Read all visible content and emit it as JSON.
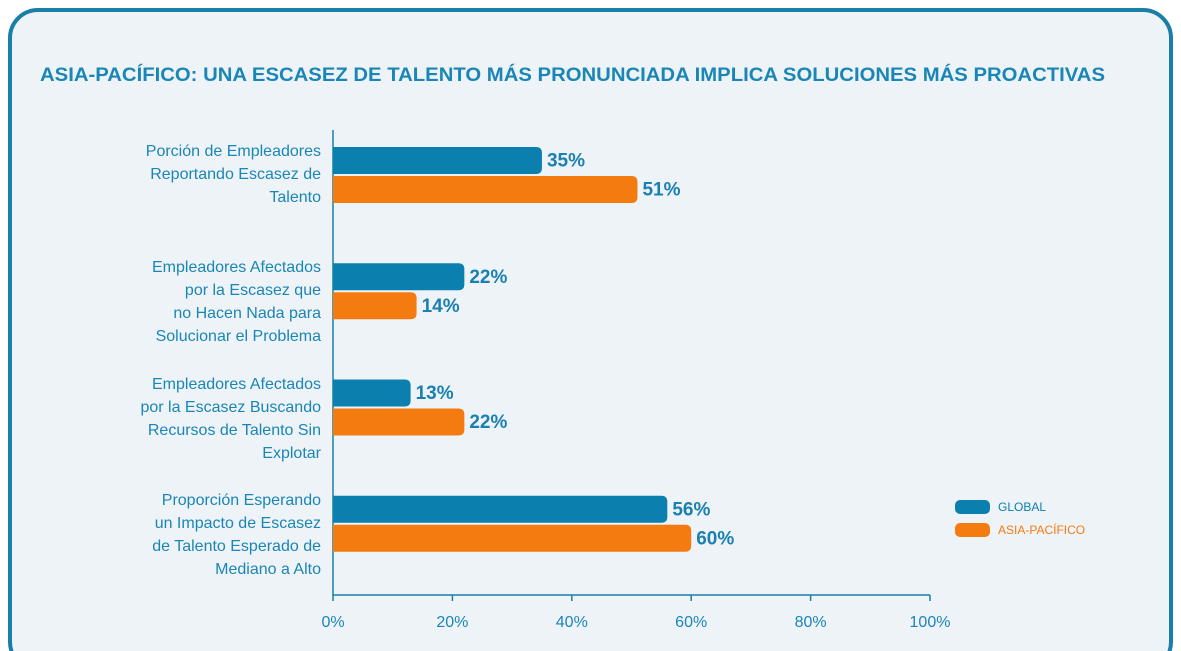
{
  "chart_data": {
    "type": "hbar",
    "title": "ASIA-PACÍFICO: UNA ESCASEZ DE TALENTO MÁS PRONUNCIADA IMPLICA SOLUCIONES MÁS PROACTIVAS",
    "categories": [
      "Porción de Empleadores\nReportando Escasez de\nTalento",
      "Empleadores Afectados\npor la Escasez que\nno Hacen Nada para\nSolucionar el Problema",
      "Empleadores Afectados\npor la Escasez Buscando\nRecursos de Talento Sin\nExplotar",
      "Proporción Esperando\nun Impacto de Escasez\nde Talento Esperado de\nMediano a Alto"
    ],
    "series": [
      {
        "name": "GLOBAL",
        "color": "#0b7fad",
        "values": [
          35,
          22,
          13,
          56
        ],
        "value_labels": [
          "35%",
          "22%",
          "13%",
          "56%"
        ]
      },
      {
        "name": "ASIA-PACÍFICO",
        "color": "#f47b0f",
        "values": [
          51,
          14,
          22,
          60
        ],
        "value_labels": [
          "51%",
          "14%",
          "22%",
          "60%"
        ]
      }
    ],
    "xlim": [
      0,
      100
    ],
    "xticks": [
      {
        "value": 0,
        "label": "0%"
      },
      {
        "value": 20,
        "label": "20%"
      },
      {
        "value": 40,
        "label": "40%"
      },
      {
        "value": 60,
        "label": "60%"
      },
      {
        "value": 80,
        "label": "80%"
      },
      {
        "value": 100,
        "label": "100%"
      }
    ],
    "legend": "right"
  }
}
